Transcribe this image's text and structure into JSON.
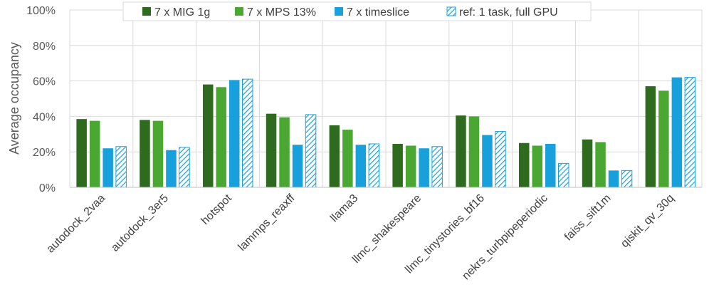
{
  "chart_data": {
    "type": "bar",
    "ylabel": "Average occupancy",
    "ylim": [
      0,
      100
    ],
    "yticks": [
      "0%",
      "20%",
      "40%",
      "60%",
      "80%",
      "100%"
    ],
    "grid": "horizontal-and-vertical",
    "legend_position": "top-center",
    "categories": [
      "autodock_2vaa",
      "autodock_3er5",
      "hotspot",
      "lammps_reaxff",
      "llama3",
      "llmc_shakespeare",
      "llmc_tinystories_bf16",
      "nekrs_turbpipeperiodic",
      "faiss_sift1m",
      "qiskit_qv_30q"
    ],
    "series": [
      {
        "name": "7 x MIG 1g",
        "color": "#2e6b1e",
        "pattern": "solid",
        "values": [
          38.5,
          38,
          58,
          41.5,
          35,
          24.5,
          40.5,
          25,
          27,
          57
        ]
      },
      {
        "name": "7 x MPS 13%",
        "color": "#4aa832",
        "pattern": "solid",
        "values": [
          37.5,
          37.5,
          56.5,
          39.5,
          32.5,
          23.5,
          40,
          23.5,
          25.5,
          54.5
        ]
      },
      {
        "name": "7 x timeslice",
        "color": "#17a0dc",
        "pattern": "solid",
        "values": [
          22,
          21,
          60.5,
          24,
          24,
          22,
          29.5,
          24.5,
          9.5,
          62
        ]
      },
      {
        "name": "ref: 1 task, full GPU",
        "color": "#17a0dc",
        "pattern": "hatched",
        "values": [
          23,
          22.5,
          61,
          41,
          24.5,
          23,
          31.5,
          13.5,
          9.5,
          62
        ]
      }
    ]
  }
}
